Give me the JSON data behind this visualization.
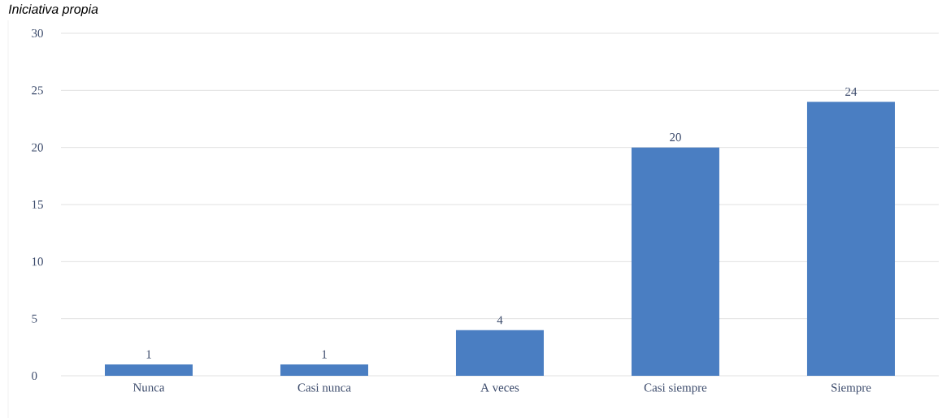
{
  "chart_data": {
    "type": "bar",
    "title": "Iniciativa propia",
    "categories": [
      "Nunca",
      "Casi nunca",
      "A veces",
      "Casi siempre",
      "Siempre"
    ],
    "values": [
      1,
      1,
      4,
      20,
      24
    ],
    "color": "#4a7ec2",
    "ylim": [
      0,
      30
    ],
    "yticks": [
      0,
      5,
      10,
      15,
      20,
      25,
      30
    ],
    "grid": "y",
    "data_labels": true
  }
}
